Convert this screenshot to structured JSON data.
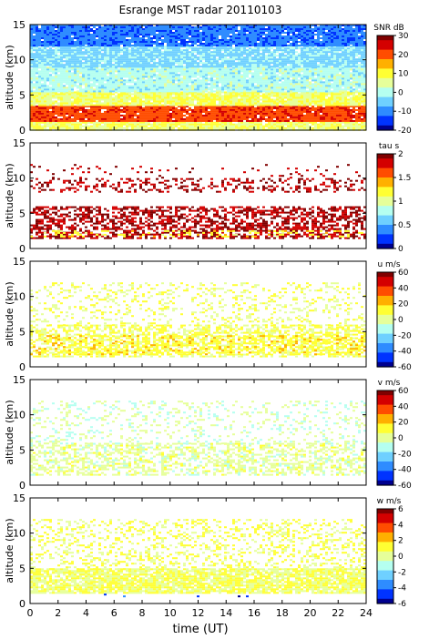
{
  "title": "Esrange MST radar 20110103",
  "xlabel": "time (UT)",
  "x_ticks": [
    "0",
    "2",
    "4",
    "6",
    "8",
    "10",
    "12",
    "14",
    "16",
    "18",
    "20",
    "22",
    "24"
  ],
  "colors": {
    "colormap": [
      "#00008f",
      "#0033ff",
      "#2f8cff",
      "#6fd0ff",
      "#b5fff0",
      "#e6ff9a",
      "#ffff33",
      "#ffb000",
      "#ff4d00",
      "#d40000",
      "#800000"
    ],
    "frame": "#000000"
  },
  "chart_data": [
    {
      "type": "heatmap",
      "name": "snr",
      "ylabel": "altitude (km)",
      "xlim": [
        0,
        24
      ],
      "ylim": [
        0,
        15
      ],
      "y_ticks": [
        "0",
        "5",
        "10",
        "15"
      ],
      "colorbar": {
        "label": "SNR dB",
        "range": [
          -20,
          30
        ],
        "ticks": [
          "30",
          "20",
          "10",
          "0",
          "-10",
          "-20"
        ]
      },
      "layers": [
        {
          "altitude_km": [
            0,
            1.2
          ],
          "level": 0.55,
          "coverage": 0.95
        },
        {
          "altitude_km": [
            1.2,
            3.5
          ],
          "level": 0.82,
          "coverage": 0.95
        },
        {
          "altitude_km": [
            3.5,
            5.5
          ],
          "level": 0.55,
          "coverage": 0.95
        },
        {
          "altitude_km": [
            5.5,
            9
          ],
          "level": 0.4,
          "coverage": 0.95
        },
        {
          "altitude_km": [
            9,
            12
          ],
          "level": 0.32,
          "coverage": 0.95
        },
        {
          "altitude_km": [
            12,
            15
          ],
          "level": 0.18,
          "coverage": 0.95
        }
      ]
    },
    {
      "type": "heatmap",
      "name": "tau",
      "ylabel": "altitude (km)",
      "xlim": [
        0,
        24
      ],
      "ylim": [
        0,
        15
      ],
      "y_ticks": [
        "0",
        "5",
        "10",
        "15"
      ],
      "colorbar": {
        "label": "tau s",
        "range": [
          0,
          2
        ],
        "ticks": [
          "2",
          "1.5",
          "1",
          "0.5",
          "0"
        ]
      },
      "layers": [
        {
          "altitude_km": [
            1.5,
            6
          ],
          "level": 0.95,
          "coverage": 0.55
        },
        {
          "altitude_km": [
            1.8,
            2.6
          ],
          "level": 0.6,
          "coverage": 0.25
        },
        {
          "altitude_km": [
            8,
            10
          ],
          "level": 0.95,
          "coverage": 0.3
        },
        {
          "altitude_km": [
            10,
            12
          ],
          "level": 0.95,
          "coverage": 0.05
        }
      ]
    },
    {
      "type": "heatmap",
      "name": "u",
      "ylabel": "altitude (km)",
      "xlim": [
        0,
        24
      ],
      "ylim": [
        0,
        15
      ],
      "y_ticks": [
        "0",
        "5",
        "10",
        "15"
      ],
      "colorbar": {
        "label": "u m/s",
        "range": [
          -60,
          60
        ],
        "ticks": [
          "60",
          "40",
          "20",
          "0",
          "-20",
          "-40",
          "-60"
        ]
      },
      "layers": [
        {
          "altitude_km": [
            1.5,
            6
          ],
          "level": 0.56,
          "coverage": 0.55
        },
        {
          "altitude_km": [
            1.8,
            4.5
          ],
          "level": 0.62,
          "coverage": 0.35
        },
        {
          "altitude_km": [
            6,
            12
          ],
          "level": 0.54,
          "coverage": 0.22
        }
      ]
    },
    {
      "type": "heatmap",
      "name": "v",
      "ylabel": "altitude (km)",
      "xlim": [
        0,
        24
      ],
      "ylim": [
        0,
        15
      ],
      "y_ticks": [
        "0",
        "5",
        "10",
        "15"
      ],
      "colorbar": {
        "label": "v m/s",
        "range": [
          -60,
          60
        ],
        "ticks": [
          "60",
          "40",
          "20",
          "0",
          "-20",
          "-40",
          "-60"
        ]
      },
      "layers": [
        {
          "altitude_km": [
            1.5,
            6
          ],
          "level": 0.5,
          "coverage": 0.5
        },
        {
          "altitude_km": [
            6,
            12
          ],
          "level": 0.46,
          "coverage": 0.2
        }
      ]
    },
    {
      "type": "heatmap",
      "name": "w",
      "ylabel": "altitude (km)",
      "xlim": [
        0,
        24
      ],
      "ylim": [
        0,
        15
      ],
      "y_ticks": [
        "0",
        "5",
        "10",
        "15"
      ],
      "colorbar": {
        "label": "w m/s",
        "range": [
          -6,
          6
        ],
        "ticks": [
          "6",
          "4",
          "2",
          "0",
          "-2",
          "-4",
          "-6"
        ]
      },
      "layers": [
        {
          "altitude_km": [
            1.5,
            5
          ],
          "level": 0.55,
          "coverage": 0.85
        },
        {
          "altitude_km": [
            5,
            12
          ],
          "level": 0.56,
          "coverage": 0.3
        },
        {
          "altitude_km": [
            1,
            1.4
          ],
          "level": 0.1,
          "coverage": 0.04
        }
      ]
    }
  ]
}
